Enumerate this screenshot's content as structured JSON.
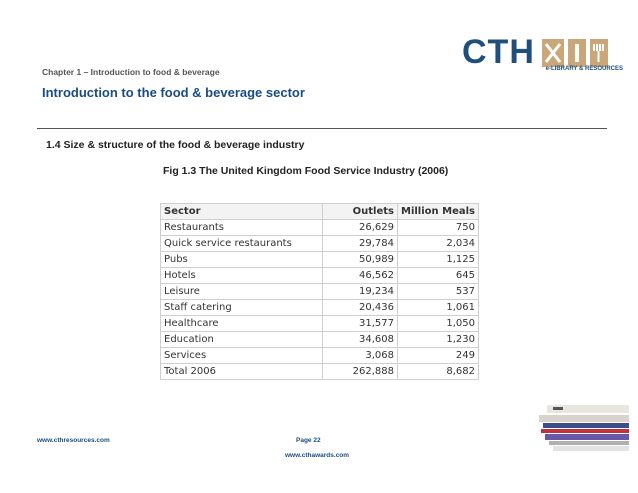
{
  "header": {
    "chapter": "Chapter 1 – Introduction to food & beverage",
    "title": "Introduction  to the food & beverage sector"
  },
  "logo": {
    "text": "CTH",
    "subtitle": "e-LIBRARY & RESOURCES",
    "brand_color": "#1f4f7a",
    "accent_color": "#c9a77a"
  },
  "section": {
    "heading": "1.4 Size & structure of the food & beverage industry",
    "figure_title": "Fig 1.3 The United Kingdom Food Service Industry (2006)"
  },
  "table": {
    "headers": [
      "Sector",
      "Outlets",
      "Million Meals"
    ],
    "rows": [
      [
        "Restaurants",
        "26,629",
        "750"
      ],
      [
        "Quick service restaurants",
        "29,784",
        "2,034"
      ],
      [
        "Pubs",
        "50,989",
        "1,125"
      ],
      [
        "Hotels",
        "46,562",
        "645"
      ],
      [
        "Leisure",
        "19,234",
        "537"
      ],
      [
        "Staff catering",
        "20,436",
        "1,061"
      ],
      [
        "Healthcare",
        "31,577",
        "1,050"
      ],
      [
        "Education",
        "34,608",
        "1,230"
      ],
      [
        "Services",
        "3,068",
        "249"
      ],
      [
        "Total 2006",
        "262,888",
        "8,682"
      ]
    ]
  },
  "footer": {
    "left_url": "www.cthresources.com",
    "page_label": "Page  22",
    "center_url": "www.cthawards.com"
  }
}
